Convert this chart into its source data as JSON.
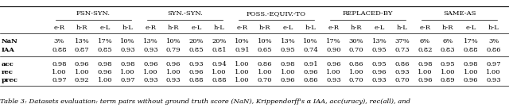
{
  "col_groups": [
    {
      "label": "FSN-SYN."
    },
    {
      "label": "SYN.-SYN."
    },
    {
      "label": "POSS.-EQUIV.-TO"
    },
    {
      "label": "REPLACED-BY"
    },
    {
      "label": "SAME-AS"
    }
  ],
  "sub_cols": [
    "e-R",
    "h-R",
    "e-L",
    "h-L"
  ],
  "row_labels": [
    "NaN",
    "IAA",
    "acc",
    "rec",
    "prec"
  ],
  "data": {
    "NaN": [
      "3%",
      "13%",
      "17%",
      "10%",
      "13%",
      "10%",
      "20%",
      "20%",
      "10%",
      "10%",
      "13%",
      "10%",
      "17%",
      "30%",
      "13%",
      "37%",
      "6%",
      "6%",
      "17%",
      "3%"
    ],
    "IAA": [
      "0.88",
      "0.87",
      "0.85",
      "0.93",
      "0.93",
      "0.79",
      "0.85",
      "0.81",
      "0.91",
      "0.65",
      "0.95",
      "0.74",
      "0.90",
      "0.70",
      "0.95",
      "0.73",
      "0.82",
      "0.83",
      "0.88",
      "0.86"
    ],
    "acc": [
      "0.98",
      "0.96",
      "0.98",
      "0.98",
      "0.96",
      "0.96",
      "0.93",
      "0.94",
      "1.00",
      "0.86",
      "0.98",
      "0.91",
      "0.96",
      "0.86",
      "0.95",
      "0.86",
      "0.98",
      "0.95",
      "0.98",
      "0.97"
    ],
    "rec": [
      "1.00",
      "1.00",
      "0.96",
      "1.00",
      "1.00",
      "1.00",
      "0.96",
      "1.00",
      "1.00",
      "1.00",
      "1.00",
      "0.96",
      "1.00",
      "1.00",
      "0.96",
      "0.93",
      "1.00",
      "1.00",
      "1.00",
      "1.00"
    ],
    "prec": [
      "0.97",
      "0.92",
      "1.00",
      "0.97",
      "0.93",
      "0.93",
      "0.88",
      "0.88",
      "1.00",
      "0.70",
      "0.96",
      "0.86",
      "0.93",
      "0.70",
      "0.93",
      "0.70",
      "0.96",
      "0.89",
      "0.96",
      "0.93"
    ]
  },
  "caption": "Table 3: Datasets evaluation: term pairs without ground truth score (NaN), Krippendorff's α IAA, acc(uracy), rec(all), and",
  "bg_color": "#ffffff",
  "font_size": 6.0,
  "caption_font_size": 6.0,
  "row_label_bold": [
    "NaN",
    "IAA",
    "acc",
    "rec",
    "prec"
  ]
}
